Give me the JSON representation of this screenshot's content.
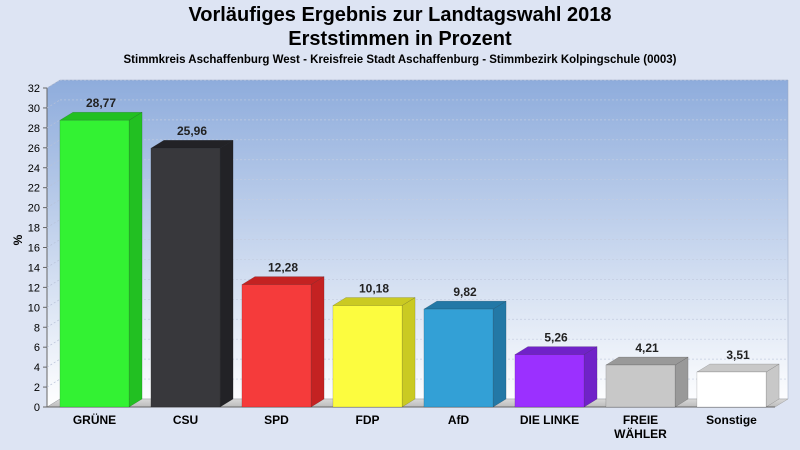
{
  "header": {
    "title_line1": "Vorläufiges Ergebnis zur Landtagswahl 2018",
    "title_line2": "Erststimmen in Prozent",
    "subtitle": "Stimmkreis Aschaffenburg West - Kreisfreie Stadt Aschaffenburg - Stimmbezirk Kolpingschule (0003)"
  },
  "chart_data": {
    "type": "bar",
    "title": "Vorläufiges Ergebnis zur Landtagswahl 2018 Erststimmen in Prozent",
    "subtitle": "Stimmkreis Aschaffenburg West - Kreisfreie Stadt Aschaffenburg - Stimmbezirk Kolpingschule (0003)",
    "ylabel": "%",
    "xlabel": "",
    "ylim": [
      0,
      32
    ],
    "yticks": [
      0,
      2,
      4,
      6,
      8,
      10,
      12,
      14,
      16,
      18,
      20,
      22,
      24,
      26,
      28,
      30,
      32
    ],
    "grid": true,
    "categories": [
      "GRÜNE",
      "CSU",
      "SPD",
      "FDP",
      "AfD",
      "DIE LINKE",
      "FREIE WÄHLER",
      "Sonstige"
    ],
    "category_lines": [
      [
        "GRÜNE"
      ],
      [
        "CSU"
      ],
      [
        "SPD"
      ],
      [
        "FDP"
      ],
      [
        "AfD"
      ],
      [
        "DIE LINKE"
      ],
      [
        "FREIE",
        "WÄHLER"
      ],
      [
        "Sonstige"
      ]
    ],
    "values": [
      28.77,
      25.96,
      12.28,
      10.18,
      9.82,
      5.26,
      4.21,
      3.51
    ],
    "value_labels": [
      "28,77",
      "25,96",
      "12,28",
      "10,18",
      "9,82",
      "5,26",
      "4,21",
      "3,51"
    ],
    "colors": [
      "#33f233",
      "#38383c",
      "#f53b3b",
      "#fcfc3f",
      "#33a0d6",
      "#9b30ff",
      "#c8c8c8",
      "#ffffff"
    ],
    "side_colors": [
      "#22c022",
      "#222226",
      "#c42222",
      "#caca22",
      "#2378a6",
      "#7022c8",
      "#999999",
      "#c8c8c8"
    ]
  }
}
